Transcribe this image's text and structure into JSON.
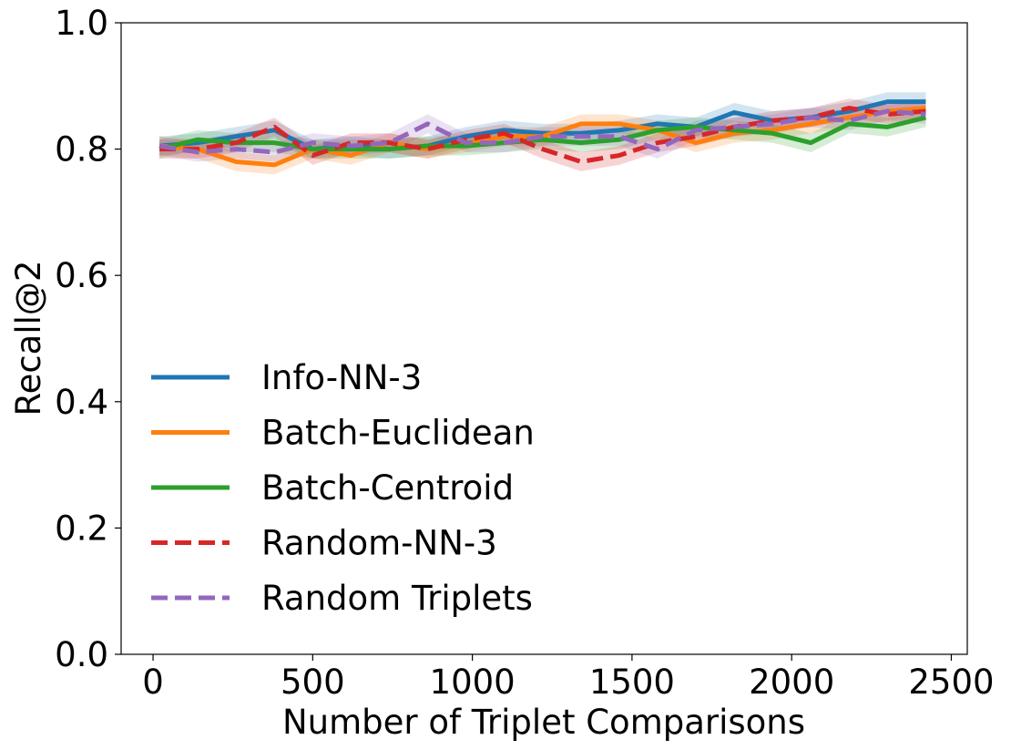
{
  "chart_data": {
    "type": "line",
    "title": "",
    "xlabel": "Number of Triplet Comparisons",
    "ylabel": "Recall@2",
    "xlim": [
      -100,
      2550
    ],
    "ylim": [
      0.0,
      1.0
    ],
    "xticks": [
      0,
      500,
      1000,
      1500,
      2000,
      2500
    ],
    "xtick_labels": [
      "0",
      "500",
      "1000",
      "1500",
      "2000",
      "2500"
    ],
    "yticks": [
      0.0,
      0.2,
      0.4,
      0.6,
      0.8,
      1.0
    ],
    "ytick_labels": [
      "0.0",
      "0.2",
      "0.4",
      "0.6",
      "0.8",
      "1.0"
    ],
    "grid": false,
    "legend_position": "center-left",
    "band_halfwidth": 0.015,
    "x": [
      20,
      140,
      260,
      380,
      500,
      620,
      740,
      860,
      980,
      1100,
      1220,
      1340,
      1460,
      1580,
      1700,
      1820,
      1940,
      2060,
      2180,
      2300,
      2420
    ],
    "series": [
      {
        "name": "Info-NN-3",
        "color": "#1f77b4",
        "dash": false,
        "values": [
          0.805,
          0.81,
          0.82,
          0.83,
          0.8,
          0.805,
          0.8,
          0.805,
          0.82,
          0.83,
          0.825,
          0.825,
          0.83,
          0.84,
          0.835,
          0.858,
          0.845,
          0.85,
          0.86,
          0.875,
          0.875
        ]
      },
      {
        "name": "Batch-Euclidean",
        "color": "#ff7f0e",
        "dash": false,
        "values": [
          0.805,
          0.8,
          0.78,
          0.775,
          0.8,
          0.79,
          0.81,
          0.8,
          0.81,
          0.82,
          0.82,
          0.84,
          0.84,
          0.83,
          0.81,
          0.825,
          0.83,
          0.84,
          0.85,
          0.86,
          0.865
        ]
      },
      {
        "name": "Batch-Centroid",
        "color": "#2ca02c",
        "dash": false,
        "values": [
          0.8,
          0.815,
          0.81,
          0.81,
          0.8,
          0.8,
          0.8,
          0.805,
          0.805,
          0.81,
          0.815,
          0.81,
          0.815,
          0.83,
          0.835,
          0.83,
          0.825,
          0.81,
          0.84,
          0.835,
          0.85
        ]
      },
      {
        "name": "Random-NN-3",
        "color": "#d62728",
        "dash": true,
        "values": [
          0.8,
          0.8,
          0.81,
          0.835,
          0.79,
          0.81,
          0.81,
          0.8,
          0.815,
          0.825,
          0.8,
          0.78,
          0.79,
          0.81,
          0.82,
          0.835,
          0.845,
          0.85,
          0.865,
          0.855,
          0.86
        ]
      },
      {
        "name": "Random Triplets",
        "color": "#9467bd",
        "dash": true,
        "values": [
          0.805,
          0.795,
          0.8,
          0.795,
          0.81,
          0.805,
          0.81,
          0.84,
          0.81,
          0.81,
          0.82,
          0.82,
          0.82,
          0.8,
          0.83,
          0.835,
          0.84,
          0.85,
          0.845,
          0.86,
          0.855
        ]
      }
    ]
  }
}
